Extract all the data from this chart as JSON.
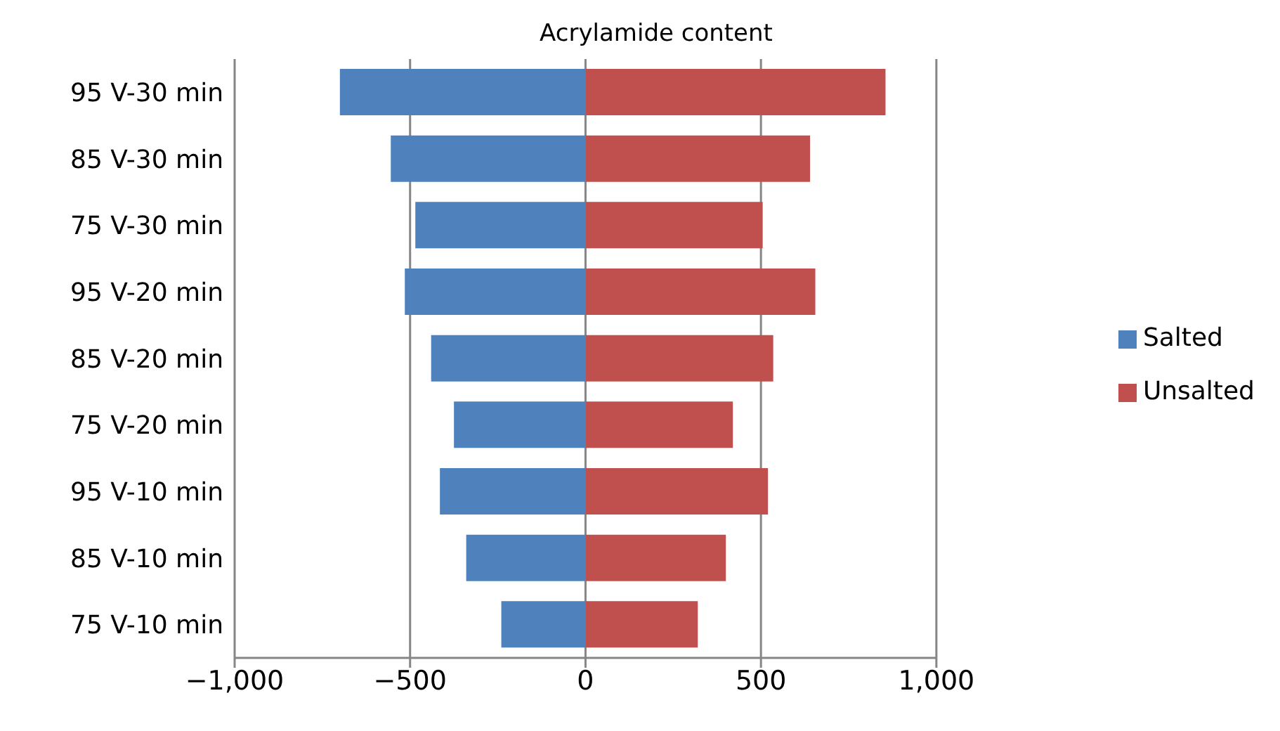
{
  "chart_data": {
    "type": "bar",
    "orientation": "horizontal",
    "stacked": true,
    "title": "Acrylamide content",
    "categories": [
      "95 V-30  min",
      "85 V-30  min",
      "75 V-30  min",
      "95 V-20  min",
      "85 V-20  min",
      "75 V-20  min",
      "95 V-10  min",
      "85 V-10  min",
      "75 V-10  min"
    ],
    "series": [
      {
        "name": "Unsalted",
        "color": "#c0504d",
        "values": [
          855,
          640,
          505,
          655,
          535,
          420,
          520,
          400,
          320
        ]
      },
      {
        "name": "Salted",
        "color": "#4f81bd",
        "values": [
          -700,
          -555,
          -485,
          -515,
          -440,
          -375,
          -415,
          -340,
          -240
        ]
      }
    ],
    "xlim": [
      -1000,
      1000
    ],
    "xticks": [
      {
        "value": -1000,
        "label": "−1,000"
      },
      {
        "value": -500,
        "label": "−500"
      },
      0,
      500,
      {
        "value": 1000,
        "label": "1,000"
      }
    ],
    "grid": "x",
    "legend": "right"
  }
}
